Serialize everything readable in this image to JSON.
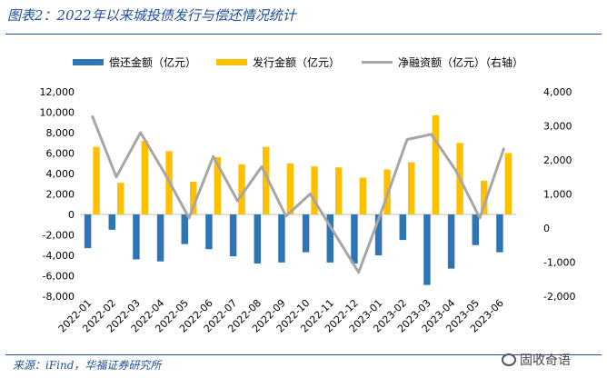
{
  "figure_title": "图表2：2022年以来城投债发行与偿还情况统计",
  "source_note": "来源：iFind，华福证券研究所",
  "watermark": "固收奇语",
  "watermark_icon": "wechat-icon",
  "colors": {
    "repay": "#2e75b6",
    "issue": "#ffc000",
    "net": "#a6a6a6",
    "frame": "#1f4e9a"
  },
  "chart_data": {
    "type": "bar",
    "categories": [
      "2022-01",
      "2022-02",
      "2022-03",
      "2022-04",
      "2022-05",
      "2022-06",
      "2022-07",
      "2022-08",
      "2022-09",
      "2022-10",
      "2022-11",
      "2022-12",
      "2023-01",
      "2023-02",
      "2023-03",
      "2023-04",
      "2023-05",
      "2023-06"
    ],
    "series": [
      {
        "name": "偿还金额（亿元）",
        "type": "bar",
        "axis": "left",
        "values": [
          -3300,
          -1500,
          -4400,
          -4600,
          -2900,
          -3400,
          -4100,
          -4800,
          -4700,
          -3700,
          -4700,
          -4800,
          -4000,
          -2500,
          -6900,
          -5300,
          -3000,
          -3700
        ]
      },
      {
        "name": "发行金额（亿元）",
        "type": "bar",
        "axis": "left",
        "values": [
          6600,
          3100,
          7200,
          6200,
          3200,
          5600,
          4900,
          6600,
          5000,
          4700,
          4600,
          3600,
          4400,
          5100,
          9700,
          7000,
          3300,
          6000
        ]
      },
      {
        "name": "净融资额（亿元）（右轴）",
        "type": "line",
        "axis": "right",
        "values": [
          3300,
          1500,
          2800,
          1600,
          300,
          2100,
          800,
          1800,
          350,
          1000,
          -150,
          -1300,
          600,
          2600,
          2750,
          1700,
          300,
          2350
        ]
      }
    ],
    "y_left": {
      "ylim": [
        -8000,
        12000
      ],
      "ticks": [
        "-8,000",
        "-6,000",
        "-4,000",
        "-2,000",
        "0",
        "2,000",
        "4,000",
        "6,000",
        "8,000",
        "10,000",
        "12,000"
      ]
    },
    "y_right": {
      "ylim": [
        -2000,
        4000
      ],
      "ticks": [
        "-2,000",
        "-1,000",
        "0",
        "1,000",
        "2,000",
        "3,000",
        "4,000"
      ]
    },
    "legend_position": "top",
    "grid": false
  }
}
